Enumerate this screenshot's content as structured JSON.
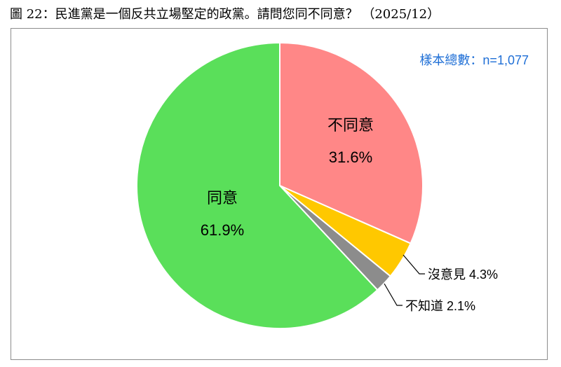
{
  "title": "圖 22：民進黨是一個反共立場堅定的政黨。請問您同不同意？ （2025/12）",
  "sample_label": "樣本總數：n=1,077",
  "chart_data": {
    "type": "pie",
    "start_angle_deg": 0,
    "direction": "clockwise",
    "slices": [
      {
        "name": "不同意",
        "value": 31.6,
        "label": "31.6%",
        "color": "#ff8787",
        "label_mode": "inside"
      },
      {
        "name": "沒意見",
        "value": 4.3,
        "label": "4.3%",
        "color": "#ffc800",
        "label_mode": "outside"
      },
      {
        "name": "不知道",
        "value": 2.1,
        "label": "2.1%",
        "color": "#8c8c8c",
        "label_mode": "outside"
      },
      {
        "name": "同意",
        "value": 61.9,
        "label": "61.9%",
        "color": "#5adf5a",
        "label_mode": "inside"
      }
    ]
  }
}
